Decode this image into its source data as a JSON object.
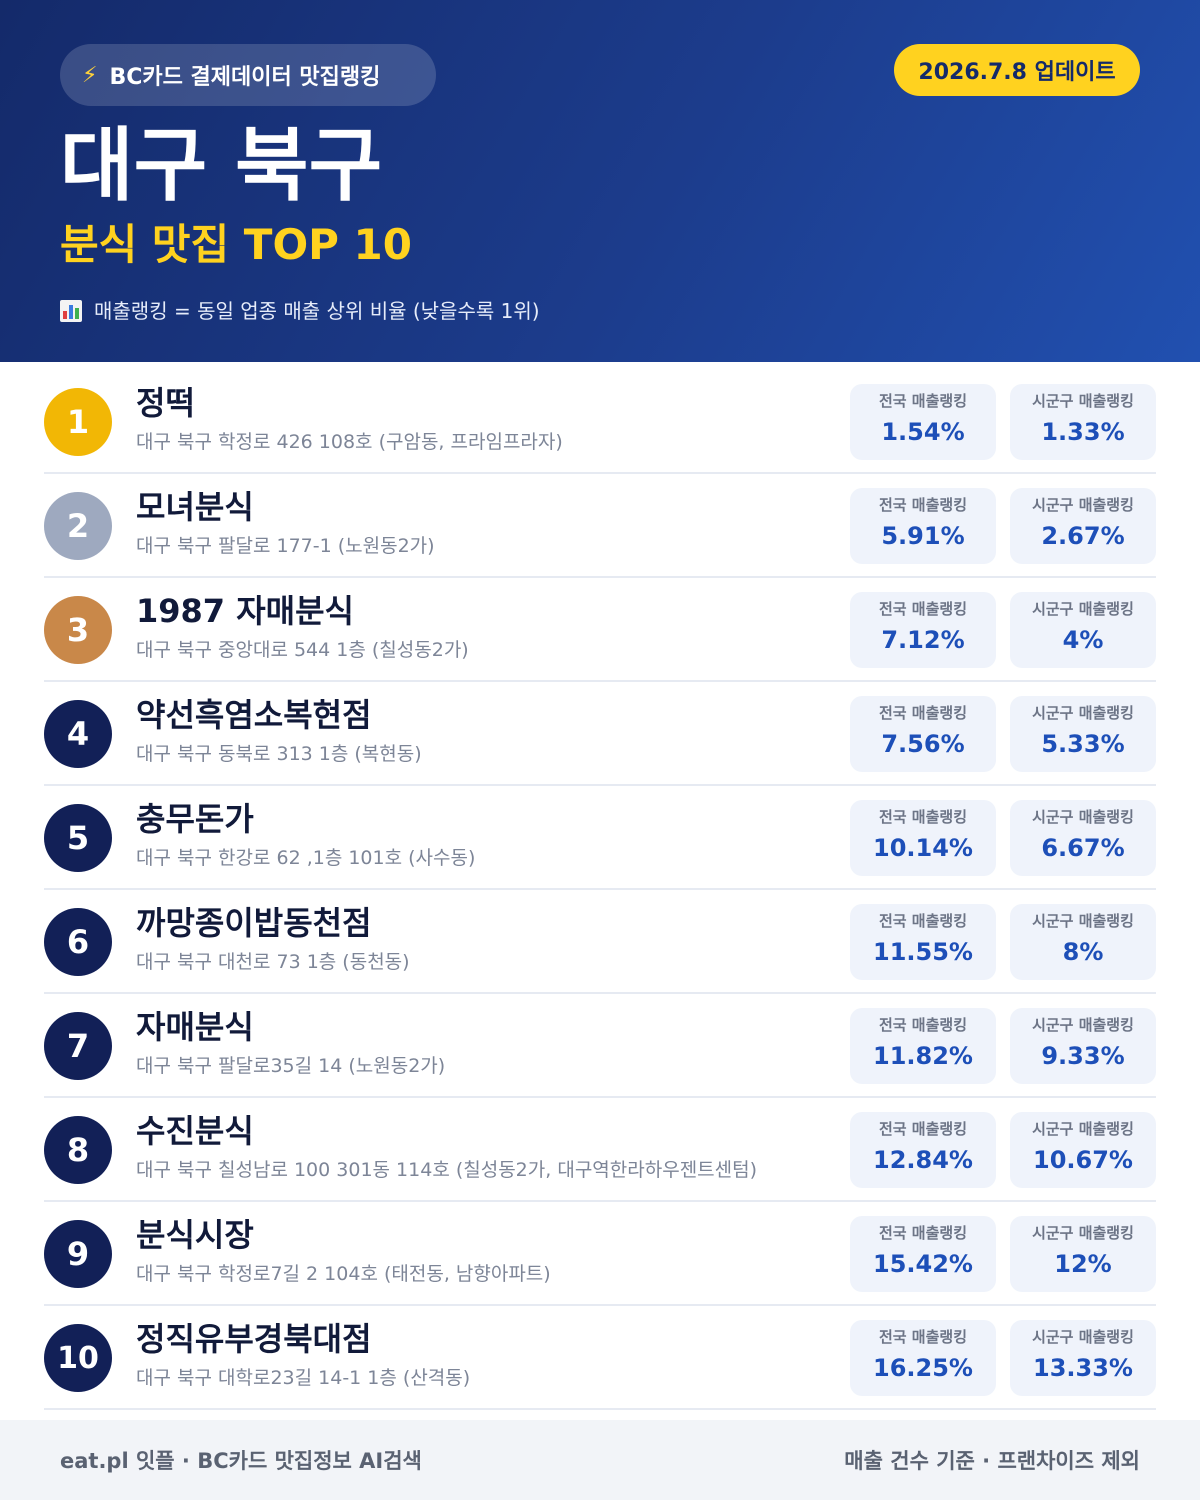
{
  "header": {
    "source_label": "BC카드 결제데이터 맛집랭킹",
    "source_icon": "lightning-icon",
    "update_label": "2026.7.8 업데이트",
    "region": "대구 북구",
    "subtitle": "분식 맛집 TOP 10",
    "note_icon": "bar-chart-icon",
    "note": "매출랭킹 = 동일 업종 매출 상위 비율 (낮을수록 1위)"
  },
  "colors": {
    "header_bg": "#1c3c8c",
    "accent_yellow": "#ffd21f",
    "rank_gold": "#f2b705",
    "rank_silver": "#9ea9bf",
    "rank_bronze": "#c98849",
    "rank_default": "#122057",
    "value_blue": "#1d4fb8"
  },
  "items": [
    {
      "rank": "1",
      "name": "정떡",
      "address": "대구 북구 학정로 426 108호 (구암동, 프라임프라자)",
      "national_label": "전국 매출랭킹",
      "national": "1.54%",
      "local_label": "시군구 매출랭킹",
      "local": "1.33%"
    },
    {
      "rank": "2",
      "name": "모녀분식",
      "address": "대구 북구 팔달로 177-1 (노원동2가)",
      "national_label": "전국 매출랭킹",
      "national": "5.91%",
      "local_label": "시군구 매출랭킹",
      "local": "2.67%"
    },
    {
      "rank": "3",
      "name": "1987 자매분식",
      "address": "대구 북구 중앙대로 544 1층 (칠성동2가)",
      "national_label": "전국 매출랭킹",
      "national": "7.12%",
      "local_label": "시군구 매출랭킹",
      "local": "4%"
    },
    {
      "rank": "4",
      "name": "약선흑염소복현점",
      "address": "대구 북구 동북로 313 1층 (복현동)",
      "national_label": "전국 매출랭킹",
      "national": "7.56%",
      "local_label": "시군구 매출랭킹",
      "local": "5.33%"
    },
    {
      "rank": "5",
      "name": "충무돈가",
      "address": "대구 북구 한강로 62 ,1층 101호 (사수동)",
      "national_label": "전국 매출랭킹",
      "national": "10.14%",
      "local_label": "시군구 매출랭킹",
      "local": "6.67%"
    },
    {
      "rank": "6",
      "name": "까망종이밥동천점",
      "address": "대구 북구 대천로 73 1층 (동천동)",
      "national_label": "전국 매출랭킹",
      "national": "11.55%",
      "local_label": "시군구 매출랭킹",
      "local": "8%"
    },
    {
      "rank": "7",
      "name": "자매분식",
      "address": "대구 북구 팔달로35길 14 (노원동2가)",
      "national_label": "전국 매출랭킹",
      "national": "11.82%",
      "local_label": "시군구 매출랭킹",
      "local": "9.33%"
    },
    {
      "rank": "8",
      "name": "수진분식",
      "address": "대구 북구 칠성남로 100 301동 114호 (칠성동2가, 대구역한라하우젠트센텀)",
      "national_label": "전국 매출랭킹",
      "national": "12.84%",
      "local_label": "시군구 매출랭킹",
      "local": "10.67%"
    },
    {
      "rank": "9",
      "name": "분식시장",
      "address": "대구 북구 학정로7길 2 104호 (태전동, 남향아파트)",
      "national_label": "전국 매출랭킹",
      "national": "15.42%",
      "local_label": "시군구 매출랭킹",
      "local": "12%"
    },
    {
      "rank": "10",
      "name": "정직유부경북대점",
      "address": "대구 북구 대학로23길 14-1 1층 (산격동)",
      "national_label": "전국 매출랭킹",
      "national": "16.25%",
      "local_label": "시군구 매출랭킹",
      "local": "13.33%"
    }
  ],
  "footer": {
    "left": "eat.pl 잇플 · BC카드 맛집정보 AI검색",
    "right": "매출 건수 기준 · 프랜차이즈 제외"
  }
}
